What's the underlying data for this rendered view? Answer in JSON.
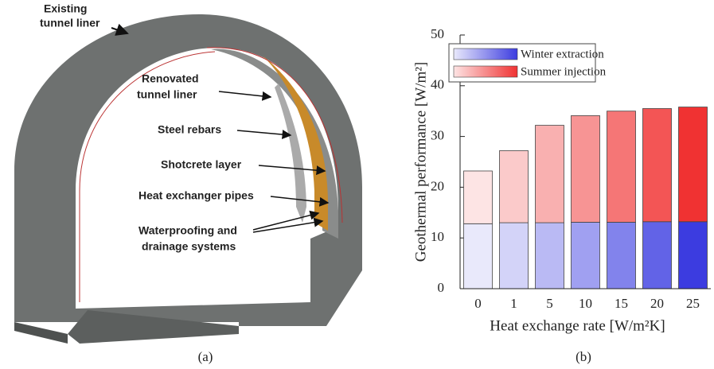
{
  "diagram": {
    "annotations": [
      {
        "lines": [
          "Existing",
          "tunnel liner"
        ]
      },
      {
        "lines": [
          "Renovated",
          "tunnel liner"
        ]
      },
      {
        "lines": [
          "Steel rebars"
        ]
      },
      {
        "lines": [
          "Shotcrete layer"
        ]
      },
      {
        "lines": [
          "Heat exchanger pipes"
        ]
      },
      {
        "lines": [
          "Waterproofing and",
          "drainage systems"
        ]
      }
    ],
    "caption": "(a)"
  },
  "chart_data": {
    "type": "stacked_bar",
    "caption": "(b)",
    "x_label": "Heat exchange rate [W/m²K]",
    "y_label": "Geothermal performance [W/m²]",
    "categories": [
      "0",
      "1",
      "5",
      "10",
      "15",
      "20",
      "25"
    ],
    "series": [
      {
        "name": "Winter extraction",
        "colors": [
          "#e9e9fb",
          "#d3d3f8",
          "#babaf4",
          "#a0a0f1",
          "#8283ec",
          "#6263e7",
          "#3c3ce0"
        ],
        "values": [
          12.8,
          13.0,
          13.0,
          13.1,
          13.1,
          13.2,
          13.2
        ]
      },
      {
        "name": "Summer injection",
        "colors": [
          "#fde4e4",
          "#fbcaca",
          "#f9b0b0",
          "#f79494",
          "#f57676",
          "#f35555",
          "#f03232"
        ],
        "values": [
          10.4,
          14.2,
          19.2,
          21.0,
          21.9,
          22.3,
          22.6
        ]
      }
    ],
    "ylim": [
      0,
      50
    ],
    "yticks": [
      0,
      10,
      20,
      30,
      40,
      50
    ],
    "legend": "upper left"
  }
}
